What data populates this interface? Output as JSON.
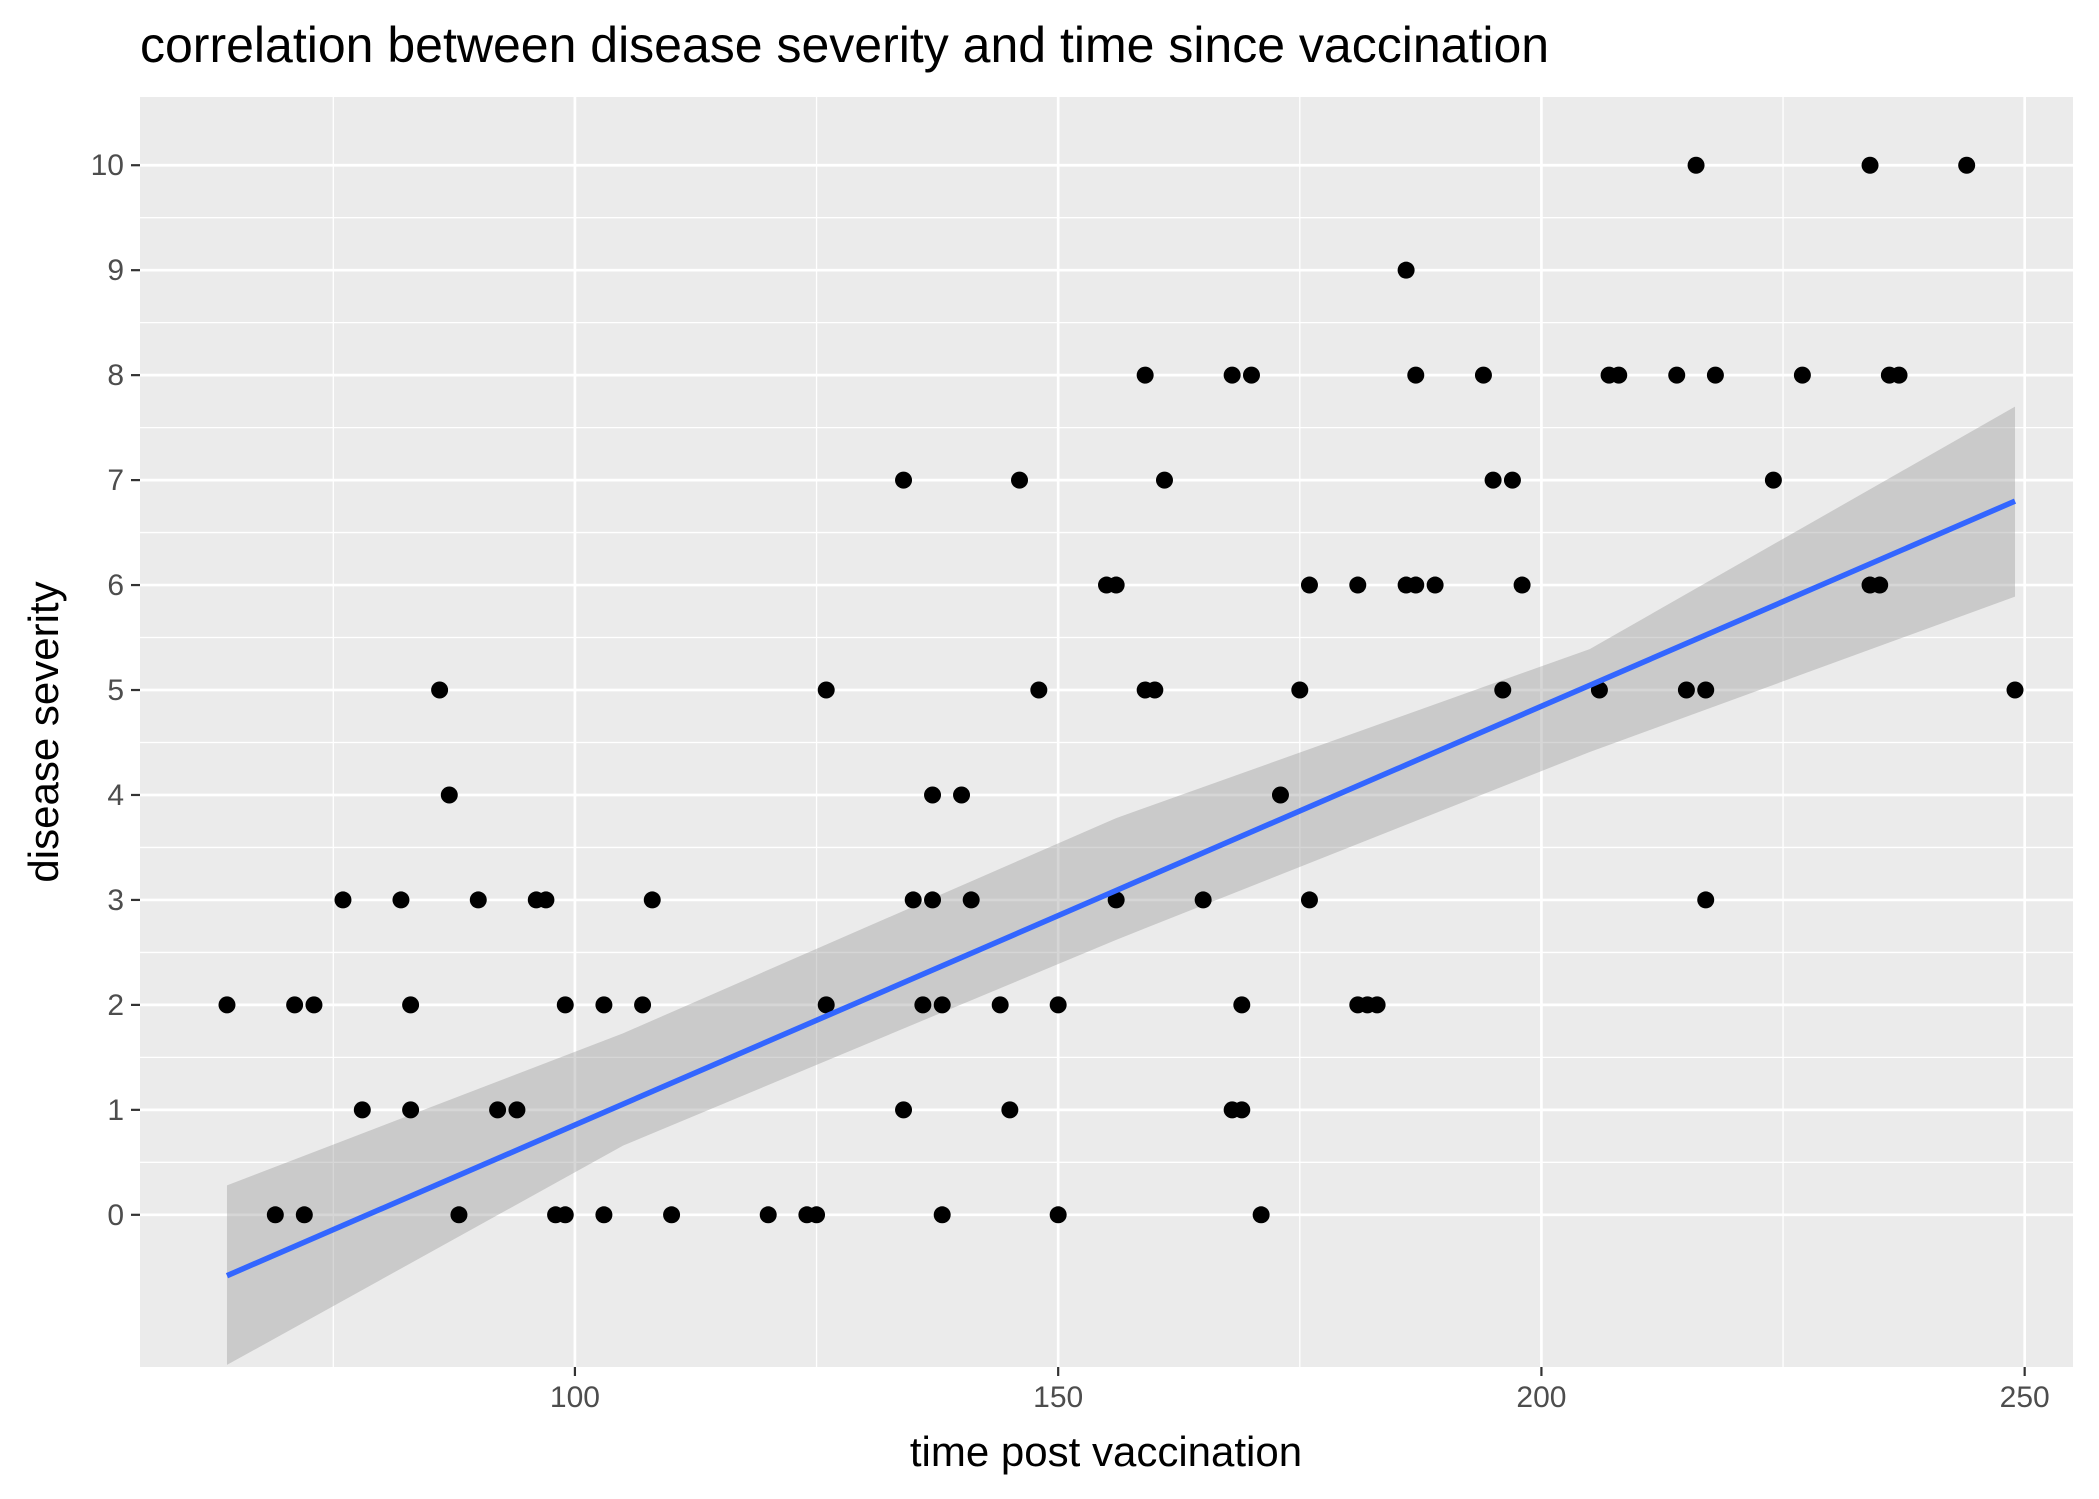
{
  "chart_data": {
    "type": "scatter",
    "title": "correlation between disease severity and time since vaccination",
    "xlabel": "time post vaccination",
    "ylabel": "disease severity",
    "xlim": [
      55,
      255
    ],
    "ylim": [
      -1.45,
      10.65
    ],
    "xticks": [
      100,
      150,
      200,
      250
    ],
    "yticks": [
      0,
      1,
      2,
      3,
      4,
      5,
      6,
      7,
      8,
      9,
      10
    ],
    "grid": true,
    "legend": "none",
    "colors": {
      "panel": "#ebebeb",
      "grid": "#ffffff",
      "points": "#000000",
      "fit_line": "#3366ff",
      "ribbon": "#c2c2c2"
    },
    "points": [
      {
        "x": 64,
        "y": 2
      },
      {
        "x": 69,
        "y": 0
      },
      {
        "x": 71,
        "y": 2
      },
      {
        "x": 72,
        "y": 0
      },
      {
        "x": 73,
        "y": 2
      },
      {
        "x": 76,
        "y": 3
      },
      {
        "x": 78,
        "y": 1
      },
      {
        "x": 82,
        "y": 3
      },
      {
        "x": 83,
        "y": 2
      },
      {
        "x": 83,
        "y": 1
      },
      {
        "x": 86,
        "y": 5
      },
      {
        "x": 87,
        "y": 4
      },
      {
        "x": 88,
        "y": 0
      },
      {
        "x": 90,
        "y": 3
      },
      {
        "x": 92,
        "y": 1
      },
      {
        "x": 94,
        "y": 1
      },
      {
        "x": 96,
        "y": 3
      },
      {
        "x": 97,
        "y": 3
      },
      {
        "x": 98,
        "y": 0
      },
      {
        "x": 99,
        "y": 0
      },
      {
        "x": 99,
        "y": 2
      },
      {
        "x": 103,
        "y": 0
      },
      {
        "x": 103,
        "y": 2
      },
      {
        "x": 107,
        "y": 2
      },
      {
        "x": 108,
        "y": 3
      },
      {
        "x": 110,
        "y": 0
      },
      {
        "x": 120,
        "y": 0
      },
      {
        "x": 124,
        "y": 0
      },
      {
        "x": 125,
        "y": 0
      },
      {
        "x": 126,
        "y": 5
      },
      {
        "x": 126,
        "y": 2
      },
      {
        "x": 134,
        "y": 7
      },
      {
        "x": 134,
        "y": 1
      },
      {
        "x": 135,
        "y": 3
      },
      {
        "x": 136,
        "y": 2
      },
      {
        "x": 137,
        "y": 3
      },
      {
        "x": 137,
        "y": 4
      },
      {
        "x": 138,
        "y": 2
      },
      {
        "x": 138,
        "y": 0
      },
      {
        "x": 140,
        "y": 4
      },
      {
        "x": 141,
        "y": 3
      },
      {
        "x": 144,
        "y": 2
      },
      {
        "x": 145,
        "y": 1
      },
      {
        "x": 146,
        "y": 7
      },
      {
        "x": 148,
        "y": 5
      },
      {
        "x": 150,
        "y": 2
      },
      {
        "x": 150,
        "y": 0
      },
      {
        "x": 155,
        "y": 6
      },
      {
        "x": 156,
        "y": 6
      },
      {
        "x": 156,
        "y": 3
      },
      {
        "x": 159,
        "y": 8
      },
      {
        "x": 159,
        "y": 5
      },
      {
        "x": 160,
        "y": 5
      },
      {
        "x": 161,
        "y": 7
      },
      {
        "x": 165,
        "y": 3
      },
      {
        "x": 168,
        "y": 8
      },
      {
        "x": 168,
        "y": 1
      },
      {
        "x": 169,
        "y": 1
      },
      {
        "x": 169,
        "y": 2
      },
      {
        "x": 170,
        "y": 8
      },
      {
        "x": 171,
        "y": 0
      },
      {
        "x": 173,
        "y": 4
      },
      {
        "x": 175,
        "y": 5
      },
      {
        "x": 176,
        "y": 6
      },
      {
        "x": 176,
        "y": 3
      },
      {
        "x": 181,
        "y": 6
      },
      {
        "x": 181,
        "y": 2
      },
      {
        "x": 182,
        "y": 2
      },
      {
        "x": 183,
        "y": 2
      },
      {
        "x": 186,
        "y": 9
      },
      {
        "x": 186,
        "y": 6
      },
      {
        "x": 187,
        "y": 6
      },
      {
        "x": 187,
        "y": 8
      },
      {
        "x": 189,
        "y": 6
      },
      {
        "x": 194,
        "y": 8
      },
      {
        "x": 195,
        "y": 7
      },
      {
        "x": 196,
        "y": 5
      },
      {
        "x": 197,
        "y": 7
      },
      {
        "x": 198,
        "y": 6
      },
      {
        "x": 206,
        "y": 5
      },
      {
        "x": 207,
        "y": 8
      },
      {
        "x": 208,
        "y": 8
      },
      {
        "x": 214,
        "y": 8
      },
      {
        "x": 215,
        "y": 5
      },
      {
        "x": 216,
        "y": 10
      },
      {
        "x": 217,
        "y": 5
      },
      {
        "x": 217,
        "y": 3
      },
      {
        "x": 218,
        "y": 8
      },
      {
        "x": 224,
        "y": 7
      },
      {
        "x": 227,
        "y": 8
      },
      {
        "x": 234,
        "y": 10
      },
      {
        "x": 234,
        "y": 6
      },
      {
        "x": 235,
        "y": 6
      },
      {
        "x": 236,
        "y": 8
      },
      {
        "x": 237,
        "y": 8
      },
      {
        "x": 244,
        "y": 10
      },
      {
        "x": 249,
        "y": 5
      }
    ],
    "fit": {
      "method": "lm",
      "x": [
        64,
        249
      ],
      "y": [
        -0.58,
        6.8
      ],
      "ribbon": [
        {
          "x": 64,
          "lo": -1.43,
          "hi": 0.28
        },
        {
          "x": 105,
          "lo": 0.66,
          "hi": 1.73
        },
        {
          "x": 156,
          "lo": 2.62,
          "hi": 3.78
        },
        {
          "x": 205,
          "lo": 4.41,
          "hi": 5.39
        },
        {
          "x": 249,
          "lo": 5.89,
          "hi": 7.7
        }
      ]
    }
  }
}
